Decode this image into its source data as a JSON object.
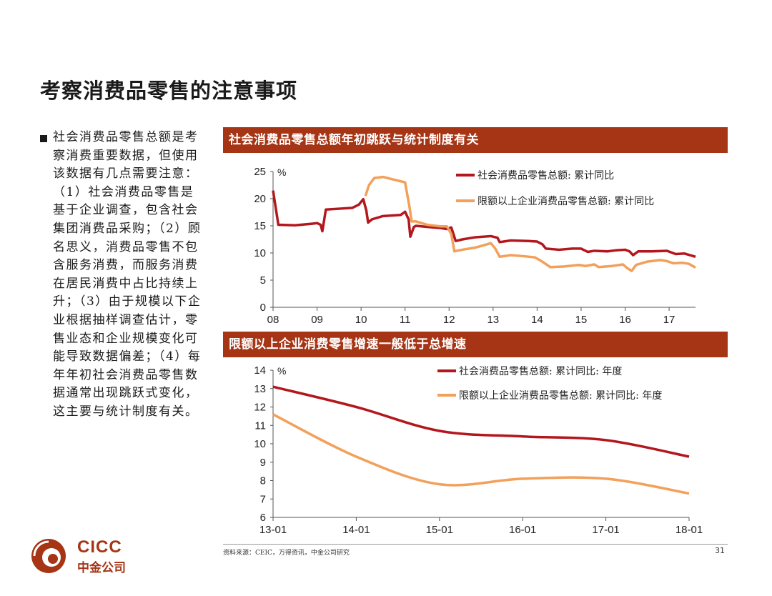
{
  "page_title": "考察消费品零售的注意事项",
  "left_text": "社会消费品零售总额是考察消费重要数据，但使用该数据有几点需要注意：（1）社会消费品零售是基于企业调查，包含社会集团消费品采购；（2）顾名思义，消费品零售不包含服务消费，而服务消费在居民消费中占比持续上升；（3）由于规模以下企业根据抽样调查估计，零售业态和企业规模变化可能导致数据偏差；（4）每年年初社会消费品零售数据通常出现跳跃式变化，这主要与统计制度有关。",
  "source": "资料来源：CEIC，万得资讯，中金公司研究",
  "page_number": "31",
  "logo": {
    "en": "CICC",
    "cn": "中金公司"
  },
  "colors": {
    "dark_red": "#b3171d",
    "orange": "#f2a05a",
    "banner": "#a63516"
  },
  "chart_data": [
    {
      "type": "line",
      "title": "社会消费品零售总额年初跳跃与统计制度有关",
      "unit_label": "%",
      "x_ticks": [
        "08",
        "09",
        "10",
        "11",
        "12",
        "13",
        "14",
        "15",
        "16",
        "17"
      ],
      "xlim": [
        2008,
        2017.6
      ],
      "ylim": [
        0,
        25
      ],
      "y_ticks": [
        0,
        5,
        10,
        15,
        20,
        25
      ],
      "series": [
        {
          "name": "社会消费品零售总额: 累计同比",
          "color": "#b3171d",
          "points": [
            [
              2008.0,
              21.5
            ],
            [
              2008.12,
              15.2
            ],
            [
              2008.5,
              15.1
            ],
            [
              2008.9,
              15.4
            ],
            [
              2009.0,
              15.5
            ],
            [
              2009.08,
              15.2
            ],
            [
              2009.12,
              14.0
            ],
            [
              2009.2,
              18.0
            ],
            [
              2009.4,
              18.1
            ],
            [
              2009.8,
              18.3
            ],
            [
              2009.95,
              18.9
            ],
            [
              2010.05,
              19.9
            ],
            [
              2010.12,
              17.8
            ],
            [
              2010.16,
              15.6
            ],
            [
              2010.25,
              16.2
            ],
            [
              2010.5,
              16.8
            ],
            [
              2010.9,
              17.0
            ],
            [
              2011.0,
              17.6
            ],
            [
              2011.08,
              16.2
            ],
            [
              2011.12,
              13.0
            ],
            [
              2011.2,
              14.8
            ],
            [
              2011.25,
              15.0
            ],
            [
              2011.5,
              14.8
            ],
            [
              2011.8,
              14.6
            ],
            [
              2011.95,
              14.4
            ],
            [
              2012.05,
              14.7
            ],
            [
              2012.15,
              12.2
            ],
            [
              2012.3,
              12.5
            ],
            [
              2012.6,
              12.9
            ],
            [
              2012.95,
              13.1
            ],
            [
              2013.1,
              12.8
            ],
            [
              2013.15,
              12.0
            ],
            [
              2013.4,
              12.3
            ],
            [
              2013.8,
              12.2
            ],
            [
              2014.0,
              12.1
            ],
            [
              2014.12,
              11.6
            ],
            [
              2014.2,
              10.8
            ],
            [
              2014.5,
              10.6
            ],
            [
              2014.8,
              10.8
            ],
            [
              2015.0,
              10.8
            ],
            [
              2015.15,
              10.2
            ],
            [
              2015.3,
              10.4
            ],
            [
              2015.6,
              10.3
            ],
            [
              2015.8,
              10.5
            ],
            [
              2016.0,
              10.6
            ],
            [
              2016.1,
              10.3
            ],
            [
              2016.18,
              9.6
            ],
            [
              2016.3,
              10.3
            ],
            [
              2016.6,
              10.3
            ],
            [
              2016.95,
              10.4
            ],
            [
              2017.15,
              9.8
            ],
            [
              2017.35,
              9.9
            ],
            [
              2017.6,
              9.3
            ]
          ]
        },
        {
          "name": "限额以上企业消费品零售总额: 累计同比",
          "color": "#f2a05a",
          "points": [
            [
              2010.1,
              20.5
            ],
            [
              2010.18,
              22.5
            ],
            [
              2010.3,
              23.8
            ],
            [
              2010.5,
              24.0
            ],
            [
              2010.7,
              23.6
            ],
            [
              2010.9,
              23.2
            ],
            [
              2011.0,
              23.0
            ],
            [
              2011.1,
              18.5
            ],
            [
              2011.15,
              15.8
            ],
            [
              2011.25,
              15.8
            ],
            [
              2011.5,
              15.2
            ],
            [
              2011.8,
              14.9
            ],
            [
              2011.95,
              14.9
            ],
            [
              2012.05,
              13.5
            ],
            [
              2012.12,
              10.3
            ],
            [
              2012.3,
              10.6
            ],
            [
              2012.6,
              11.0
            ],
            [
              2012.95,
              11.8
            ],
            [
              2013.05,
              10.8
            ],
            [
              2013.15,
              9.3
            ],
            [
              2013.4,
              9.6
            ],
            [
              2013.7,
              9.4
            ],
            [
              2013.95,
              9.2
            ],
            [
              2014.1,
              8.5
            ],
            [
              2014.3,
              7.4
            ],
            [
              2014.6,
              7.5
            ],
            [
              2014.95,
              7.8
            ],
            [
              2015.1,
              7.6
            ],
            [
              2015.3,
              7.9
            ],
            [
              2015.4,
              7.4
            ],
            [
              2015.7,
              7.6
            ],
            [
              2015.95,
              7.9
            ],
            [
              2016.05,
              7.2
            ],
            [
              2016.15,
              6.7
            ],
            [
              2016.25,
              7.8
            ],
            [
              2016.5,
              8.4
            ],
            [
              2016.8,
              8.7
            ],
            [
              2016.95,
              8.5
            ],
            [
              2017.1,
              8.1
            ],
            [
              2017.3,
              8.2
            ],
            [
              2017.45,
              8.0
            ],
            [
              2017.6,
              7.3
            ]
          ]
        }
      ]
    },
    {
      "type": "line",
      "title": "限额以上企业消费零售增速一般低于总增速",
      "unit_label": "%",
      "x_ticks": [
        "13-01",
        "14-01",
        "15-01",
        "16-01",
        "17-01",
        "18-01"
      ],
      "xlim": [
        0,
        5
      ],
      "ylim": [
        6,
        14
      ],
      "y_ticks": [
        6,
        7,
        8,
        9,
        10,
        11,
        12,
        13,
        14
      ],
      "series": [
        {
          "name": "社会消费品零售总额: 累计同比: 年度",
          "color": "#b3171d",
          "points": [
            [
              0,
              13.1
            ],
            [
              1,
              12.0
            ],
            [
              2,
              10.7
            ],
            [
              3,
              10.4
            ],
            [
              4,
              10.2
            ],
            [
              5,
              9.3
            ]
          ]
        },
        {
          "name": "限额以上企业消费品零售总额: 累计同比: 年度",
          "color": "#f2a05a",
          "points": [
            [
              0,
              11.6
            ],
            [
              1,
              9.3
            ],
            [
              2,
              7.8
            ],
            [
              3,
              8.1
            ],
            [
              4,
              8.1
            ],
            [
              5,
              7.3
            ]
          ]
        }
      ]
    }
  ]
}
